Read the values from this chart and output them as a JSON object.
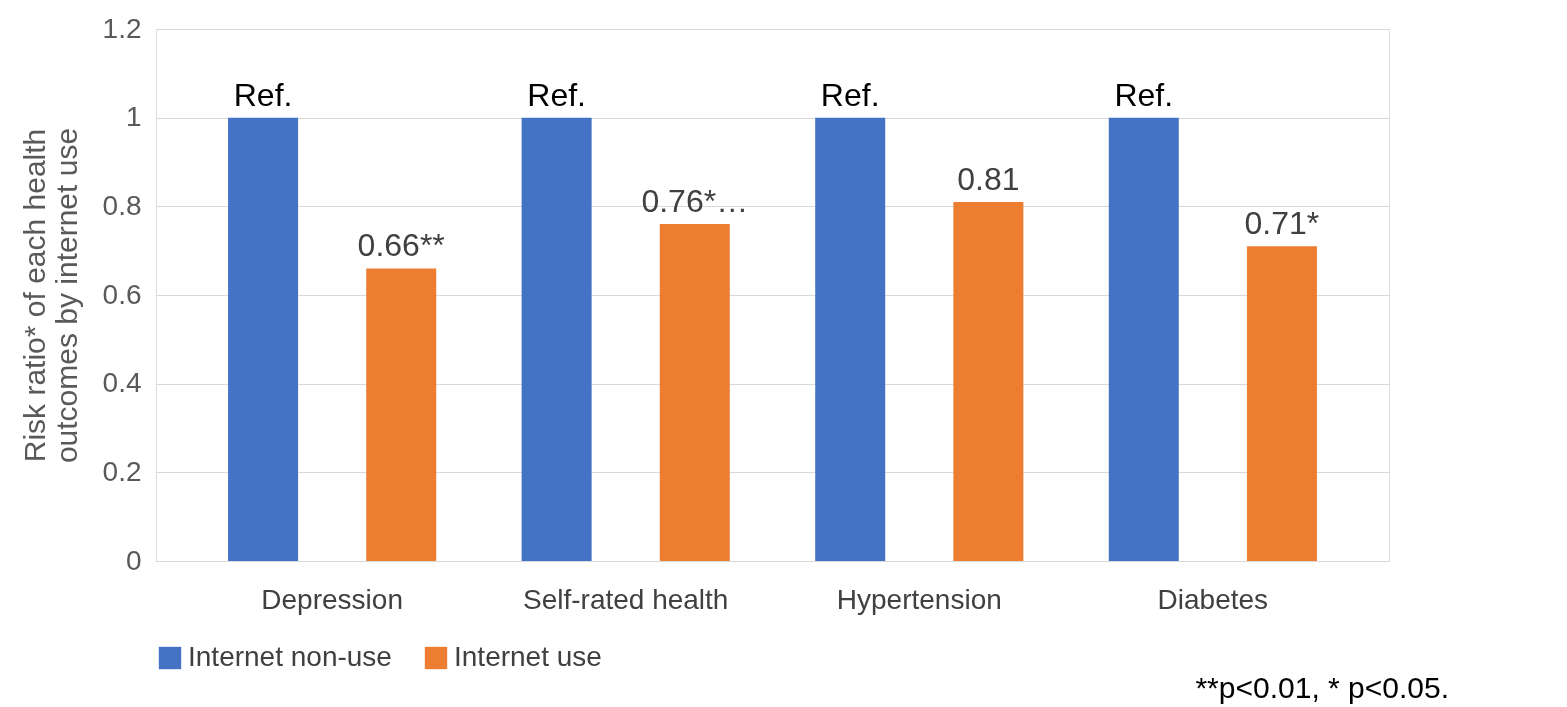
{
  "chart_data": {
    "type": "bar",
    "categories": [
      "Depression",
      "Self-rated health",
      "Hypertension",
      "Diabetes"
    ],
    "series": [
      {
        "name": "Internet non-use",
        "color": "#4472c4",
        "values": [
          1,
          1,
          1,
          1
        ],
        "value_labels": [
          "Ref.",
          "Ref.",
          "Ref.",
          "Ref."
        ]
      },
      {
        "name": "Internet use",
        "color": "#ed7d31",
        "values": [
          0.66,
          0.76,
          0.81,
          0.71
        ],
        "value_labels": [
          "0.66**",
          "0.76*…",
          "0.81",
          "0.71*"
        ]
      }
    ],
    "ylabel": "Risk ratio* of each health outcomes by internet use",
    "ylim": [
      0,
      1.2
    ],
    "yticks": [
      0,
      0.2,
      0.4,
      0.6,
      0.8,
      1,
      1.2
    ],
    "grid": "y",
    "legend": "bottom",
    "annotations": [
      "**p<0.01, * p<0.05."
    ]
  }
}
